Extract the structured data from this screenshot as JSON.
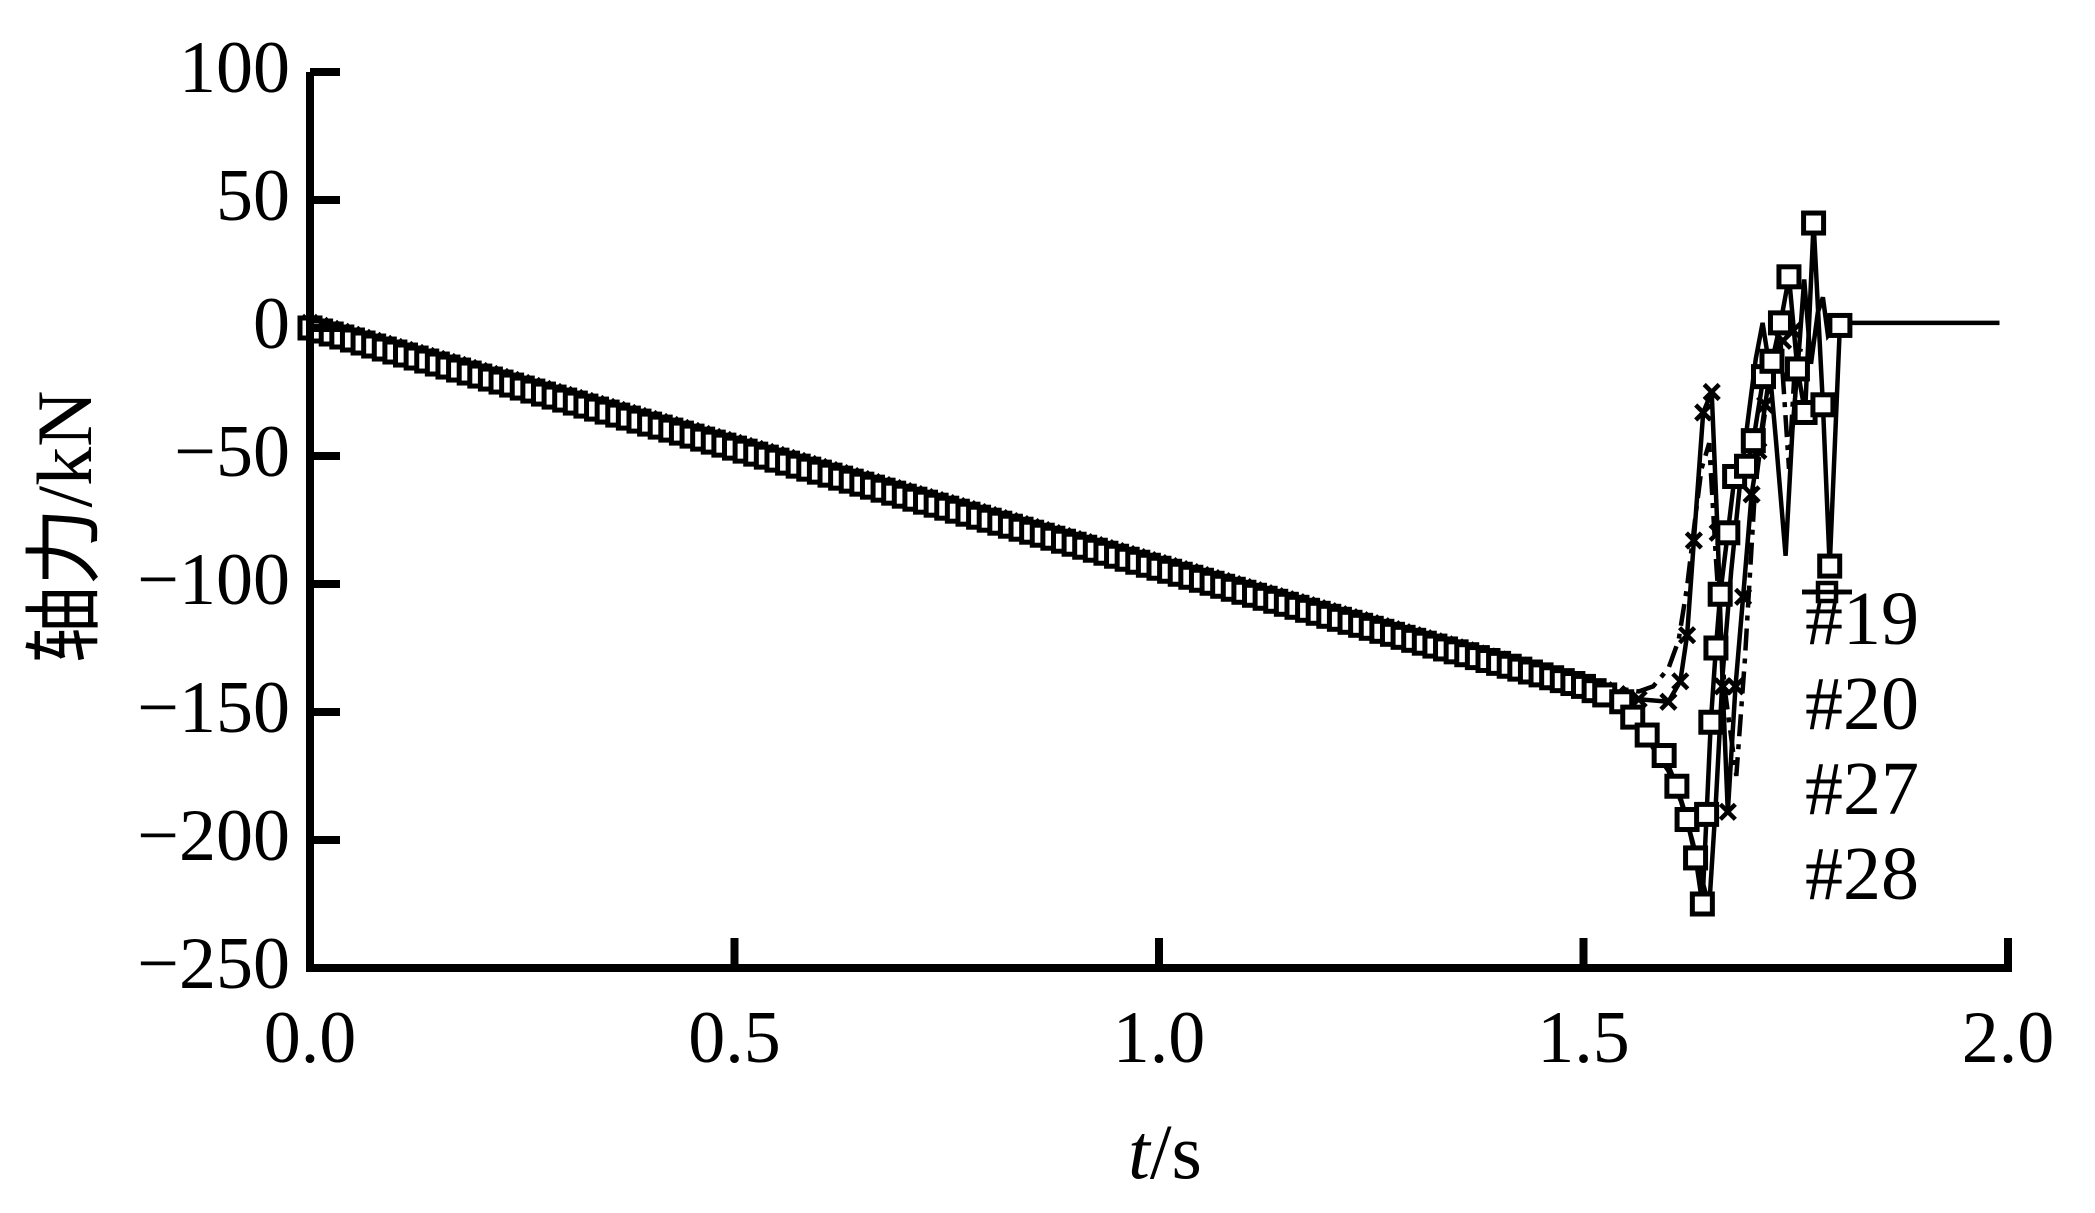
{
  "figure": {
    "background_color": "#ffffff",
    "ink_color": "#000000"
  },
  "chart_data": {
    "type": "line",
    "title": "",
    "xlabel": "t/s",
    "xlabel_var": "t",
    "xlabel_unit": "/s",
    "ylabel": "轴力/kN",
    "xlim": [
      0.0,
      2.0
    ],
    "ylim": [
      -250,
      100
    ],
    "xticks": [
      0.0,
      0.5,
      1.0,
      1.5,
      2.0
    ],
    "xtick_labels": [
      "0.0",
      "0.5",
      "1.0",
      "1.5",
      "2.0"
    ],
    "yticks": [
      100,
      50,
      0,
      -50,
      -100,
      -150,
      -200,
      -250
    ],
    "ytick_labels": [
      "100",
      "50",
      "0",
      "−50",
      "−100",
      "−150",
      "−200",
      "−250"
    ],
    "grid": false,
    "legend_position": "inside-right-middle",
    "legend_frame": false,
    "marker_interval_s": 0.0125,
    "series": [
      {
        "name": "#19",
        "line": "solid",
        "marker": "x",
        "points": [
          [
            0,
            2
          ],
          [
            0.65,
            -59
          ],
          [
            1.3,
            -120
          ],
          [
            1.5,
            -139
          ],
          [
            1.54,
            -143
          ],
          [
            1.565,
            -145
          ],
          [
            1.6,
            -146
          ],
          [
            1.614,
            -138
          ],
          [
            1.622,
            -120
          ],
          [
            1.63,
            -83
          ],
          [
            1.641,
            -33
          ],
          [
            1.651,
            -25
          ],
          [
            1.658,
            -80
          ],
          [
            1.664,
            -140
          ],
          [
            1.67,
            -189
          ],
          [
            1.679,
            -140
          ],
          [
            1.688,
            -105
          ],
          [
            1.698,
            -65
          ],
          [
            1.706,
            -48
          ],
          [
            1.714,
            -30
          ],
          [
            1.722,
            -12
          ],
          [
            1.735,
            -5
          ],
          [
            1.747,
            -1
          ]
        ]
      },
      {
        "name": "#20",
        "line": "dashdot",
        "marker": "none",
        "points": [
          [
            0,
            1
          ],
          [
            0.65,
            -60
          ],
          [
            1.3,
            -121
          ],
          [
            1.5,
            -138
          ],
          [
            1.545,
            -141
          ],
          [
            1.565,
            -142
          ],
          [
            1.582,
            -140
          ],
          [
            1.6,
            -133
          ],
          [
            1.612,
            -122
          ],
          [
            1.622,
            -101
          ],
          [
            1.631,
            -76
          ],
          [
            1.639,
            -55
          ],
          [
            1.648,
            -45
          ],
          [
            1.656,
            -90
          ],
          [
            1.666,
            -140
          ],
          [
            1.68,
            -175
          ],
          [
            1.69,
            -130
          ],
          [
            1.702,
            -63
          ],
          [
            1.712,
            -37
          ],
          [
            1.722,
            -15
          ],
          [
            1.732,
            -5
          ],
          [
            1.742,
            -55
          ],
          [
            1.748,
            -20
          ],
          [
            1.756,
            -8
          ]
        ]
      },
      {
        "name": "#27",
        "line": "solid",
        "marker": "square",
        "points": [
          [
            0,
            0
          ],
          [
            0.65,
            -61
          ],
          [
            1.3,
            -122
          ],
          [
            1.5,
            -140
          ],
          [
            1.545,
            -146
          ],
          [
            1.558,
            -152
          ],
          [
            1.575,
            -159
          ],
          [
            1.595,
            -167
          ],
          [
            1.61,
            -179
          ],
          [
            1.622,
            -192
          ],
          [
            1.632,
            -207
          ],
          [
            1.64,
            -225
          ],
          [
            1.645,
            -190
          ],
          [
            1.65,
            -154
          ],
          [
            1.656,
            -125
          ],
          [
            1.661,
            -104
          ],
          [
            1.67,
            -80
          ],
          [
            1.678,
            -58
          ],
          [
            1.692,
            -54
          ],
          [
            1.7,
            -44
          ],
          [
            1.712,
            -19
          ],
          [
            1.722,
            -13
          ],
          [
            1.732,
            2
          ],
          [
            1.742,
            20
          ],
          [
            1.752,
            -16
          ],
          [
            1.761,
            -33
          ],
          [
            1.771,
            41
          ],
          [
            1.782,
            -30
          ],
          [
            1.79,
            -93
          ],
          [
            1.802,
            1
          ]
        ]
      },
      {
        "name": "#28",
        "line": "solid",
        "marker": "none",
        "points": [
          [
            0,
            -1
          ],
          [
            0.65,
            -62
          ],
          [
            1.3,
            -123
          ],
          [
            1.5,
            -141
          ],
          [
            1.545,
            -148
          ],
          [
            1.56,
            -155
          ],
          [
            1.58,
            -163
          ],
          [
            1.6,
            -173
          ],
          [
            1.615,
            -185
          ],
          [
            1.628,
            -200
          ],
          [
            1.64,
            -216
          ],
          [
            1.648,
            -226
          ],
          [
            1.656,
            -185
          ],
          [
            1.664,
            -135
          ],
          [
            1.674,
            -95
          ],
          [
            1.684,
            -62
          ],
          [
            1.694,
            -35
          ],
          [
            1.703,
            -12
          ],
          [
            1.711,
            2
          ],
          [
            1.719,
            -15
          ],
          [
            1.727,
            -45
          ],
          [
            1.738,
            -89
          ],
          [
            1.746,
            -40
          ],
          [
            1.754,
            -8
          ],
          [
            1.76,
            19
          ],
          [
            1.768,
            -14
          ],
          [
            1.776,
            6
          ],
          [
            1.782,
            12
          ],
          [
            1.788,
            -3
          ],
          [
            1.796,
            0
          ],
          [
            1.802,
            2
          ],
          [
            1.99,
            2
          ]
        ]
      }
    ]
  }
}
